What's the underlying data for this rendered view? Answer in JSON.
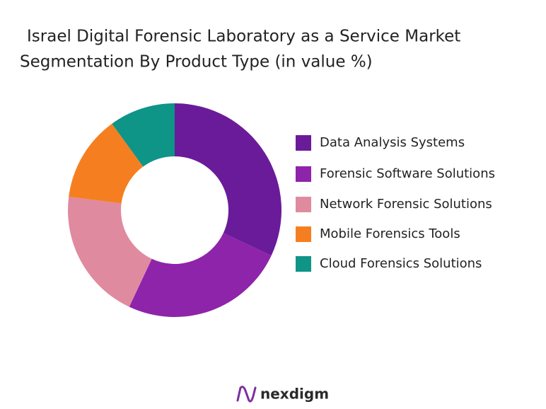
{
  "chart_data": {
    "type": "donut",
    "title": [
      "Israel Digital Forensic Laboratory as a Service Market",
      "Segmentation By Product Type (in value %)"
    ],
    "series": [
      {
        "name": "Data Analysis Systems",
        "color": "#6a1b9a",
        "values": [
          32
        ]
      },
      {
        "name": "Forensic Software Solutions",
        "color": "#8e24aa",
        "values": [
          25
        ]
      },
      {
        "name": "Network Forensic Solutions",
        "color": "#e08aa0",
        "values": [
          20
        ]
      },
      {
        "name": "Mobile Forensics Tools",
        "color": "#f57f20",
        "values": [
          13
        ]
      },
      {
        "name": "Cloud Forensics Solutions",
        "color": "#0f9488",
        "values": [
          10
        ]
      }
    ],
    "legend": "right"
  },
  "brand": "nexdigm"
}
